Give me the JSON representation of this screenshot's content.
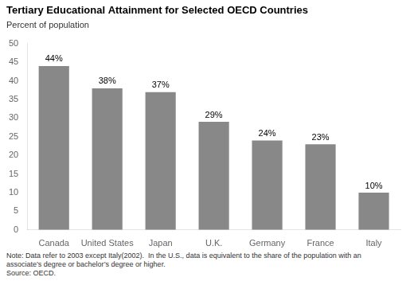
{
  "chart_data": {
    "type": "bar",
    "title": "Tertiary Educational Attainment for Selected OECD Countries",
    "subtitle": "Percent of population",
    "categories": [
      "Canada",
      "United States",
      "Japan",
      "U.K.",
      "Germany",
      "France",
      "Italy"
    ],
    "values": [
      44,
      38,
      37,
      29,
      24,
      23,
      10
    ],
    "value_labels": [
      "44%",
      "38%",
      "37%",
      "29%",
      "24%",
      "23%",
      "10%"
    ],
    "data_labels": true,
    "color": "#888888",
    "ylim": [
      0,
      50
    ],
    "yticks": [
      0,
      5,
      10,
      15,
      20,
      25,
      30,
      35,
      40,
      45,
      50
    ],
    "grid": false,
    "annotations": [
      "Note: Data refer to 2003 except Italy(2002).  In the U.S., data is equivalent to the share of the population with an",
      "associate’s degree or bachelor’s degree or higher.",
      "Source: OECD."
    ]
  }
}
